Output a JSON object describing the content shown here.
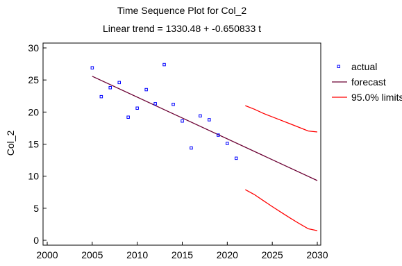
{
  "chart_data": {
    "type": "scatter",
    "title": "Time Sequence Plot for Col_2",
    "subtitle": "Linear trend = 1330.48 + -0.650833 t",
    "xlabel": "",
    "ylabel": "Col_2",
    "xlim": [
      2000,
      2030
    ],
    "ylim": [
      0,
      30
    ],
    "x_ticks": [
      2000,
      2005,
      2010,
      2015,
      2020,
      2025,
      2030
    ],
    "y_ticks": [
      0,
      5,
      10,
      15,
      20,
      25,
      30
    ],
    "grid": false,
    "legend_position": "right",
    "colors": {
      "actual": "#0000ff",
      "forecast": "#6b0033",
      "limits": "#ff0000"
    },
    "series": [
      {
        "name": "actual",
        "type": "scatter",
        "x": [
          2005,
          2006,
          2007,
          2008,
          2009,
          2010,
          2011,
          2012,
          2013,
          2014,
          2015,
          2016,
          2017,
          2018,
          2019,
          2020,
          2021
        ],
        "y": [
          26.9,
          22.4,
          23.8,
          24.6,
          19.2,
          20.6,
          23.5,
          21.3,
          27.4,
          21.2,
          18.6,
          14.4,
          19.4,
          18.8,
          16.4,
          15.1,
          12.8
        ]
      },
      {
        "name": "forecast",
        "type": "line",
        "x": [
          2005,
          2030
        ],
        "y": [
          25.58,
          9.31
        ]
      },
      {
        "name": "95.0% limits",
        "type": "line",
        "x": [
          2022,
          2023,
          2024,
          2025,
          2026,
          2027,
          2028,
          2029,
          2030
        ],
        "y": [
          21.0,
          20.45,
          19.8,
          19.25,
          18.7,
          18.15,
          17.6,
          17.05,
          16.9
        ]
      },
      {
        "name": "lower limit",
        "type": "line",
        "x": [
          2022,
          2023,
          2024,
          2025,
          2026,
          2027,
          2028,
          2029,
          2030
        ],
        "y": [
          7.9,
          7.15,
          6.2,
          5.25,
          4.35,
          3.45,
          2.6,
          1.8,
          1.5
        ]
      }
    ]
  }
}
